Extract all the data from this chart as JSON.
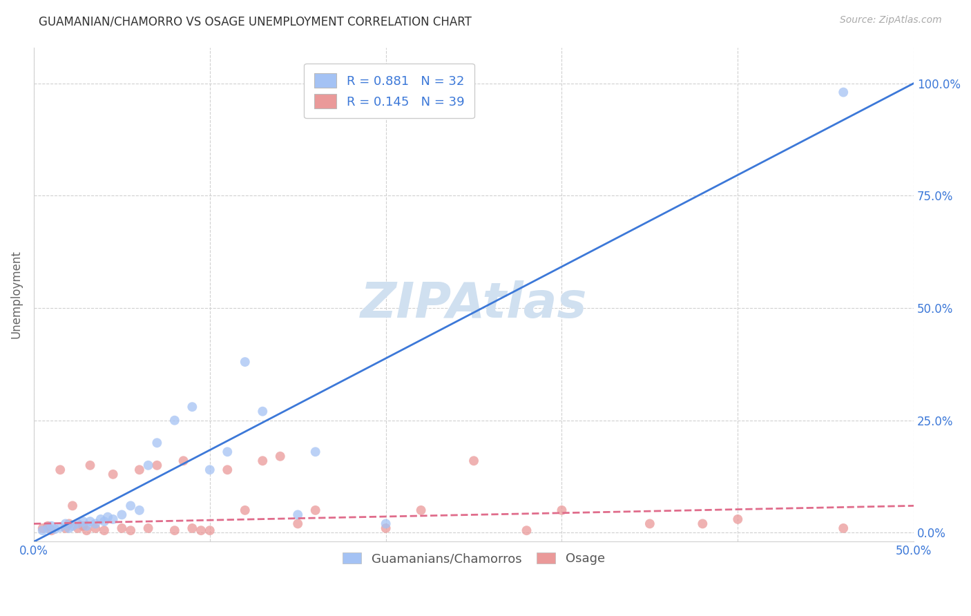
{
  "title": "GUAMANIAN/CHAMORRO VS OSAGE UNEMPLOYMENT CORRELATION CHART",
  "source": "Source: ZipAtlas.com",
  "ylabel": "Unemployment",
  "xlim": [
    0.0,
    0.5
  ],
  "ylim": [
    -0.02,
    1.08
  ],
  "xticks": [
    0.0,
    0.1,
    0.2,
    0.3,
    0.4,
    0.5
  ],
  "xticklabels": [
    "0.0%",
    "",
    "",
    "",
    "",
    "50.0%"
  ],
  "yticks": [
    0.0,
    0.25,
    0.5,
    0.75,
    1.0
  ],
  "yticklabels_right": [
    "0.0%",
    "25.0%",
    "50.0%",
    "75.0%",
    "100.0%"
  ],
  "blue_color": "#a4c2f4",
  "pink_color": "#ea9999",
  "blue_line_color": "#3c78d8",
  "pink_line_color": "#e06c8b",
  "label_color": "#3c78d8",
  "watermark_color": "#d0e0f0",
  "R_blue": 0.881,
  "N_blue": 32,
  "R_pink": 0.145,
  "N_pink": 39,
  "legend_label_blue": "Guamanians/Chamorros",
  "legend_label_pink": "Osage",
  "blue_scatter_x": [
    0.005,
    0.008,
    0.01,
    0.012,
    0.015,
    0.018,
    0.02,
    0.022,
    0.025,
    0.028,
    0.03,
    0.032,
    0.035,
    0.038,
    0.04,
    0.042,
    0.045,
    0.05,
    0.055,
    0.06,
    0.065,
    0.07,
    0.08,
    0.09,
    0.1,
    0.11,
    0.12,
    0.13,
    0.15,
    0.16,
    0.2,
    0.46
  ],
  "blue_scatter_y": [
    0.005,
    0.01,
    0.015,
    0.008,
    0.012,
    0.02,
    0.01,
    0.015,
    0.02,
    0.025,
    0.015,
    0.025,
    0.02,
    0.03,
    0.025,
    0.035,
    0.03,
    0.04,
    0.06,
    0.05,
    0.15,
    0.2,
    0.25,
    0.28,
    0.14,
    0.18,
    0.38,
    0.27,
    0.04,
    0.18,
    0.02,
    0.98
  ],
  "pink_scatter_x": [
    0.005,
    0.008,
    0.01,
    0.015,
    0.018,
    0.02,
    0.022,
    0.025,
    0.028,
    0.03,
    0.032,
    0.035,
    0.04,
    0.045,
    0.05,
    0.055,
    0.06,
    0.065,
    0.07,
    0.08,
    0.085,
    0.09,
    0.095,
    0.1,
    0.11,
    0.12,
    0.13,
    0.14,
    0.15,
    0.16,
    0.2,
    0.22,
    0.25,
    0.28,
    0.3,
    0.35,
    0.38,
    0.4,
    0.46
  ],
  "pink_scatter_y": [
    0.01,
    0.015,
    0.005,
    0.14,
    0.01,
    0.02,
    0.06,
    0.01,
    0.015,
    0.005,
    0.15,
    0.01,
    0.005,
    0.13,
    0.01,
    0.005,
    0.14,
    0.01,
    0.15,
    0.005,
    0.16,
    0.01,
    0.005,
    0.005,
    0.14,
    0.05,
    0.16,
    0.17,
    0.02,
    0.05,
    0.01,
    0.05,
    0.16,
    0.005,
    0.05,
    0.02,
    0.02,
    0.03,
    0.01
  ],
  "blue_line_x": [
    0.0,
    0.5
  ],
  "blue_line_y": [
    -0.02,
    1.0
  ],
  "pink_line_x": [
    0.0,
    0.5
  ],
  "pink_line_y": [
    0.02,
    0.06
  ],
  "background_color": "#ffffff",
  "grid_color": "#d0d0d0"
}
